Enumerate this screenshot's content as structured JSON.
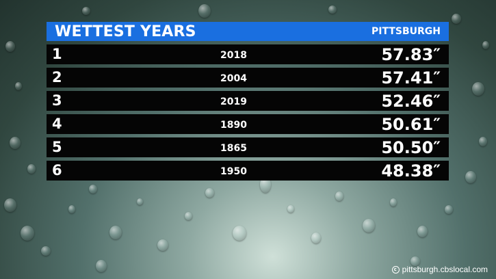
{
  "header": {
    "title": "WETTEST YEARS",
    "location": "PITTSBURGH"
  },
  "rows": [
    {
      "rank": "1",
      "year": "2018",
      "amount": "57.83″"
    },
    {
      "rank": "2",
      "year": "2004",
      "amount": "57.41″"
    },
    {
      "rank": "3",
      "year": "2019",
      "amount": "52.46″"
    },
    {
      "rank": "4",
      "year": "1890",
      "amount": "50.61″"
    },
    {
      "rank": "5",
      "year": "1865",
      "amount": "50.50″"
    },
    {
      "rank": "6",
      "year": "1950",
      "amount": "48.38″"
    }
  ],
  "footer": {
    "source": "pittsburgh.cbslocal.com",
    "icon": "copyright-icon"
  },
  "colors": {
    "header_bg": "#1a6fe0",
    "row_bg": "#050505",
    "text": "#ffffff"
  }
}
